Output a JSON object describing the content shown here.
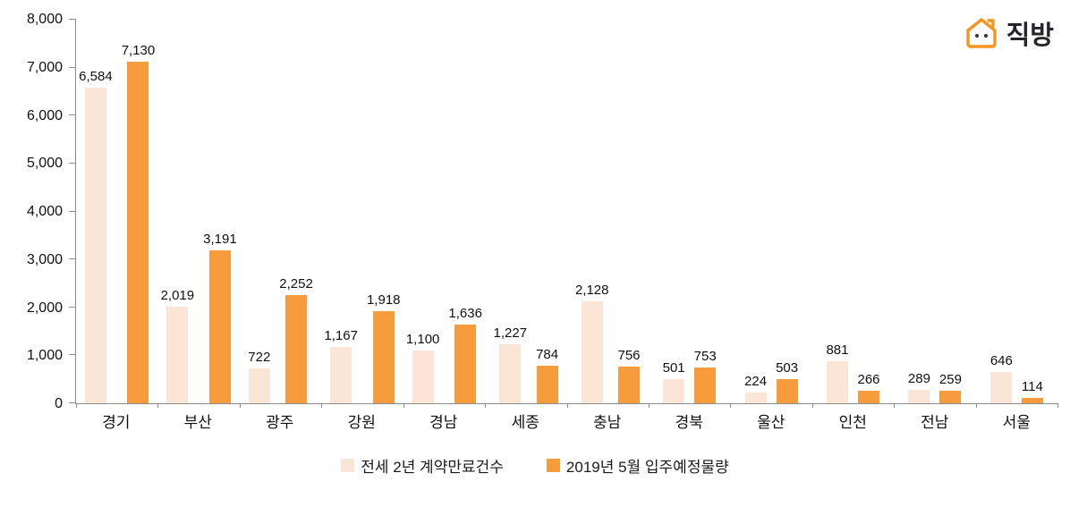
{
  "logo": {
    "brand": "직방"
  },
  "chart_data": {
    "type": "bar",
    "title": "",
    "categories": [
      "경기",
      "부산",
      "광주",
      "강원",
      "경남",
      "세종",
      "충남",
      "경북",
      "울산",
      "인천",
      "전남",
      "서울"
    ],
    "series": [
      {
        "name": "전세 2년 계약만료건수",
        "color": "#FBE5D6",
        "values": [
          6584,
          2019,
          722,
          1167,
          1100,
          1227,
          2128,
          501,
          224,
          881,
          289,
          646
        ]
      },
      {
        "name": "2019년 5월 입주예정물량",
        "color": "#F79C3C",
        "values": [
          7130,
          3191,
          2252,
          1918,
          1636,
          784,
          756,
          753,
          503,
          266,
          259,
          114
        ]
      }
    ],
    "xlabel": "",
    "ylabel": "",
    "ylim": [
      0,
      8000
    ],
    "ytick_step": 1000,
    "grid": false,
    "legend_position": "bottom",
    "data_labels": true
  }
}
